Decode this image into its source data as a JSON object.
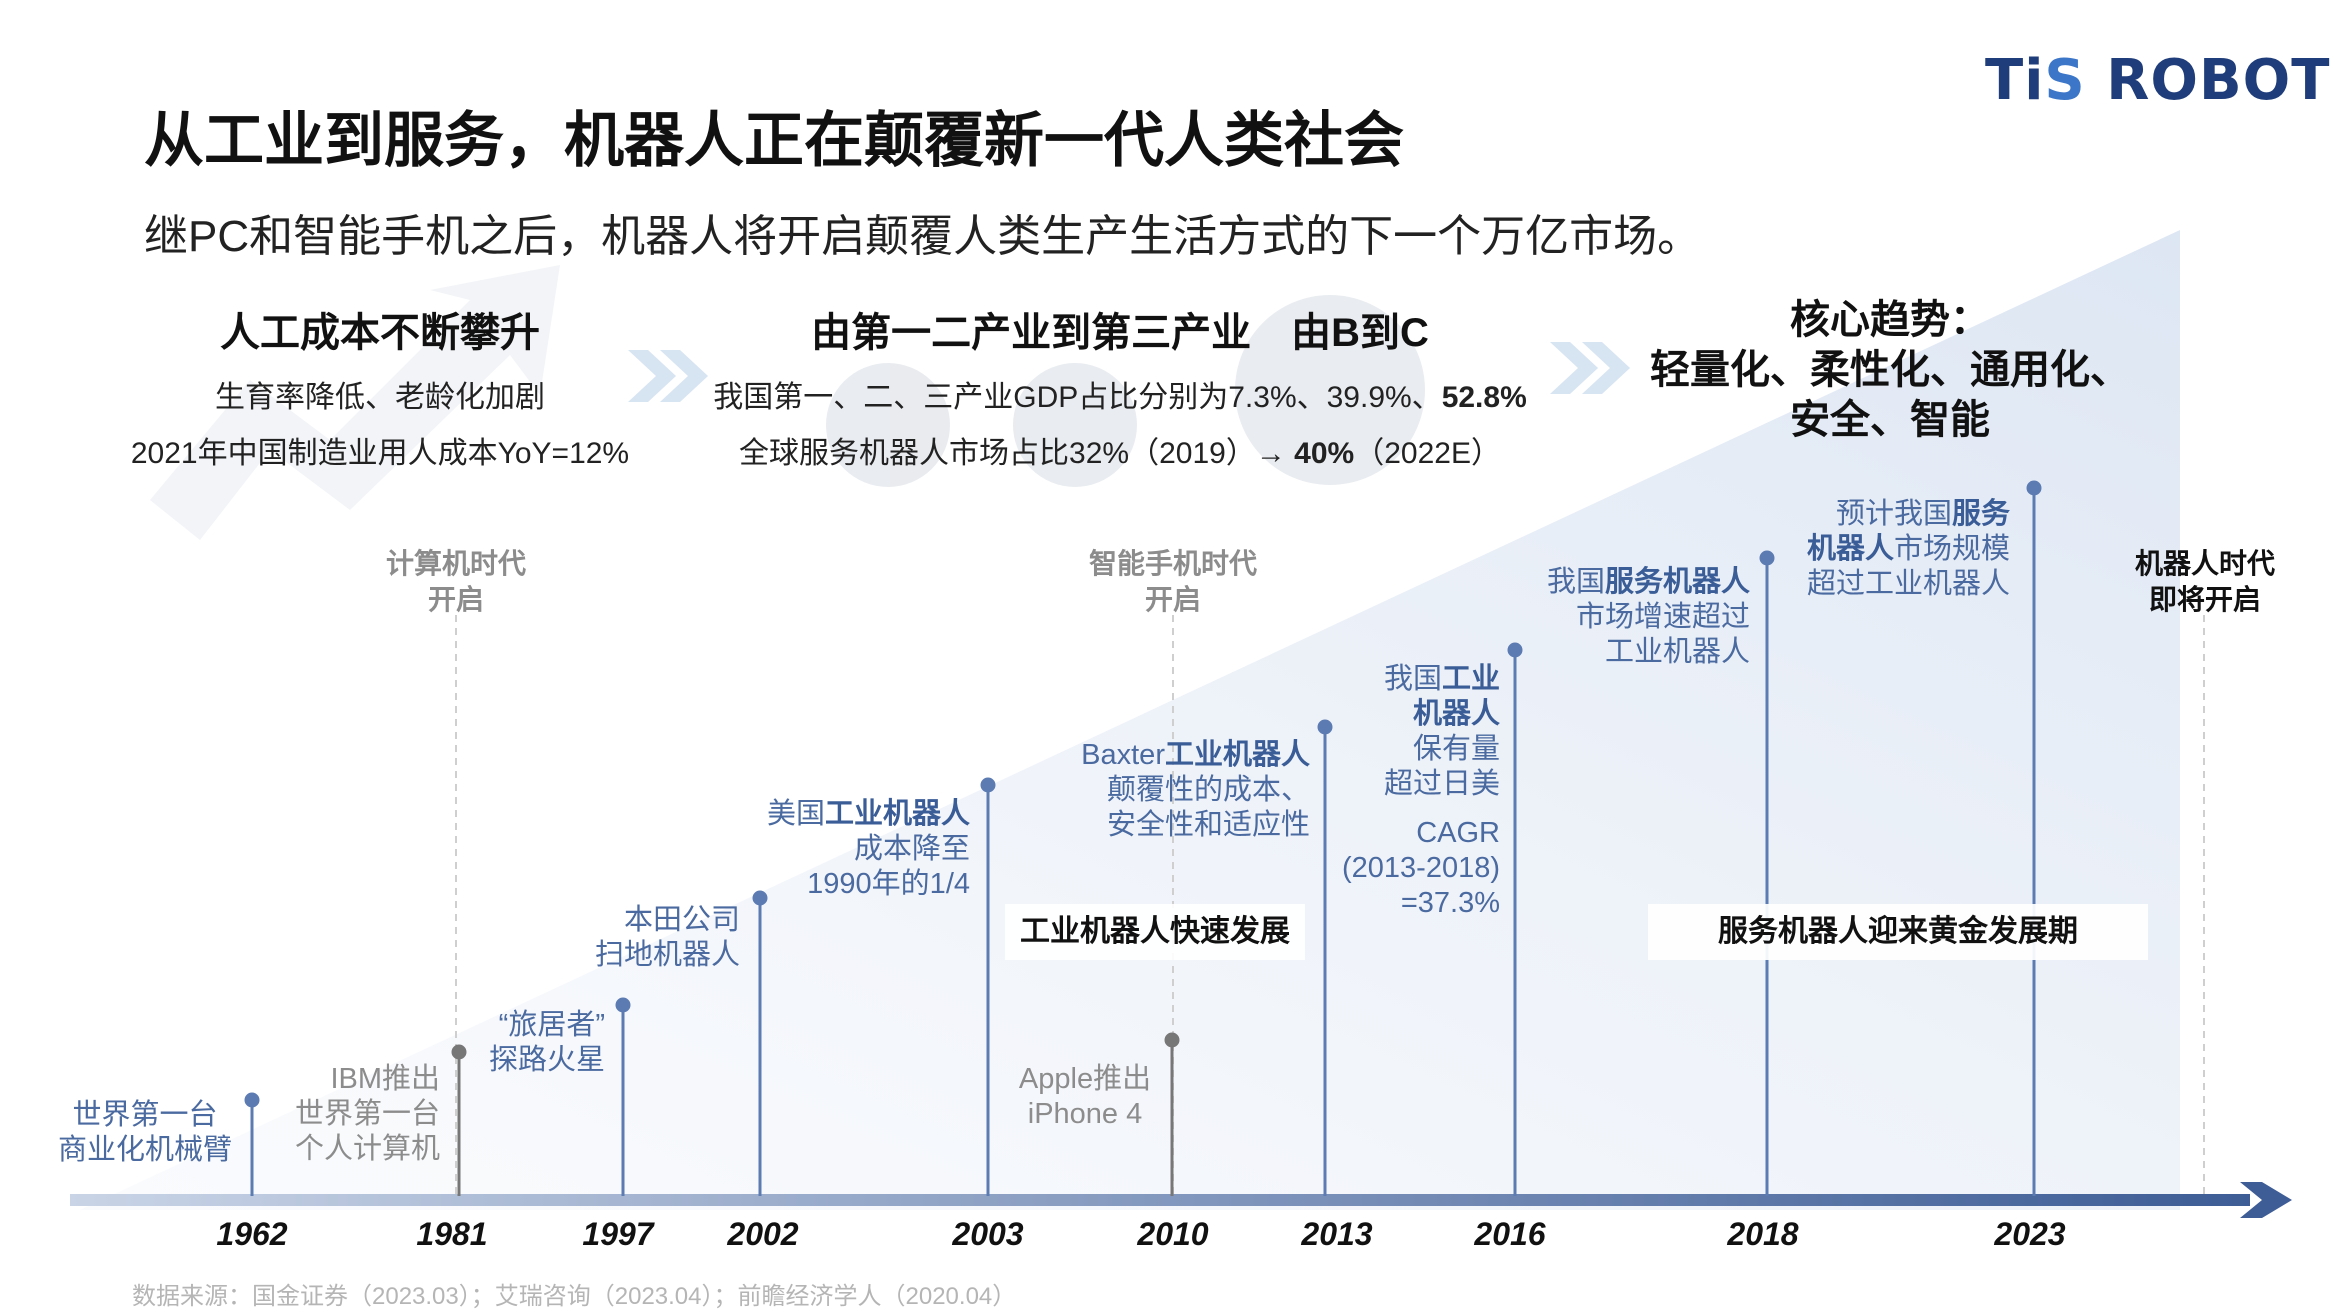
{
  "logo": {
    "ti": "Ti",
    "s": "S",
    "rest": " ROBOT"
  },
  "title": "从工业到服务，机器人正在颠覆新一代人类社会",
  "subtitle": "继PC和智能手机之后，机器人将开启颠覆人类生产生活方式的下一个万亿市场。",
  "blocks": {
    "cost": {
      "heading": "人工成本不断攀升",
      "line1": "生育率降低、老龄化加剧",
      "line2": "2021年中国制造业用人成本YoY=12%"
    },
    "industry": {
      "heading": "由第一二产业到第三产业　由B到C",
      "line1_pre": "我国第一、二、三产业GDP占比分别为7.3%、39.9%、",
      "line1_bold": "52.8%",
      "line2_pre": "全球服务机器人市场占比32%（2019）→ ",
      "line2_bold": "40%",
      "line2_post": "（2022E）"
    },
    "trend": {
      "line1": "核心趋势：",
      "line2": "轻量化、柔性化、通用化、",
      "line3": "安全、智能"
    }
  },
  "eras": {
    "computer": "计算机时代\n开启",
    "smartphone": "智能手机时代\n开启",
    "robot": "机器人时代\n即将开启"
  },
  "events": {
    "e1962": {
      "line1": "世界第一台",
      "line2": "商业化机械臂"
    },
    "e1981": {
      "line1": "IBM推出",
      "line2": "世界第一台",
      "line3": "个人计算机"
    },
    "e1997": {
      "line1": "“旅居者”",
      "line2": "探路火星"
    },
    "e2002": {
      "line1": "本田公司",
      "line2": "扫地机器人"
    },
    "e2003": {
      "line1_pre": "美国",
      "line1_bold": "工业机器人",
      "line2": "成本降至",
      "line3": "1990年的1/4"
    },
    "e2010": {
      "line1": "Apple推出",
      "line2": "iPhone 4"
    },
    "e2013": {
      "line1_pre": "Baxter",
      "line1_bold": "工业机器人",
      "line2": "颠覆性的成本、",
      "line3": "安全性和适应性"
    },
    "e2016": {
      "line1_pre": "我国",
      "line1_bold": "工业",
      "line2_bold": "机器人",
      "line3": "保有量",
      "line4": "超过日美",
      "cagr1": "CAGR",
      "cagr2": "(2013-2018)",
      "cagr3": "=37.3%"
    },
    "e2018": {
      "line1_pre": "我国",
      "line1_bold": "服务机器人",
      "line2": "市场增速超过",
      "line3": "工业机器人"
    },
    "e2023": {
      "line1_pre": "预计我国",
      "line1_bold": "服务",
      "line2_bold": "机器人",
      "line2_post": "市场规模",
      "line3": "超过工业机器人"
    }
  },
  "phases": {
    "industrial": "工业机器人快速发展",
    "service": "服务机器人迎来黄金发展期"
  },
  "years": [
    "1962",
    "1981",
    "1997",
    "2002",
    "2003",
    "2010",
    "2013",
    "2016",
    "2018",
    "2023"
  ],
  "source": "数据来源：国金证券（2023.03）；艾瑞咨询（2023.04）；前瞻经济学人（2020.04）",
  "colors": {
    "accent": "#4a6aa0",
    "axis": "#4a6aa0",
    "gray_text": "#8c8c8c",
    "logo": "#1f3d7a"
  }
}
